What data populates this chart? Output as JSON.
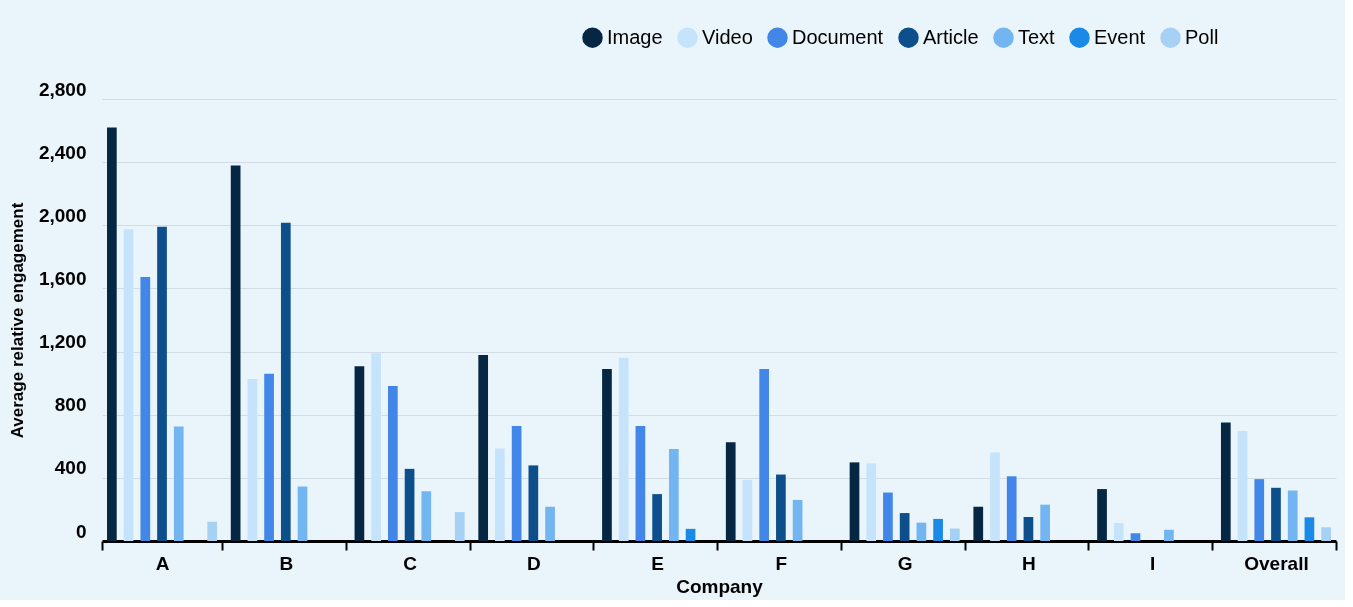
{
  "chart_data": {
    "type": "bar",
    "xlabel": "Company",
    "ylabel": "Average relative engagement",
    "categories": [
      "A",
      "B",
      "C",
      "D",
      "E",
      "F",
      "G",
      "H",
      "I",
      "Overall"
    ],
    "series": [
      {
        "name": "Image",
        "color": "#062743",
        "values": [
          2620,
          2378,
          1107,
          1178,
          1090,
          625,
          498,
          217,
          329,
          751
        ]
      },
      {
        "name": "Video",
        "color": "#c5e4fb",
        "values": [
          1975,
          1026,
          1189,
          586,
          1161,
          388,
          492,
          560,
          114,
          697
        ]
      },
      {
        "name": "Document",
        "color": "#4287e8",
        "values": [
          1672,
          1059,
          982,
          729,
          729,
          1090,
          307,
          410,
          49,
          392
        ]
      },
      {
        "name": "Article",
        "color": "#0d4f8a",
        "values": [
          1990,
          2016,
          457,
          479,
          297,
          421,
          177,
          152,
          null,
          337
        ]
      },
      {
        "name": "Text",
        "color": "#72b5f0",
        "values": [
          725,
          345,
          315,
          217,
          583,
          260,
          116,
          230,
          71,
          320
        ]
      },
      {
        "name": "Event",
        "color": "#1a8ae6",
        "values": [
          null,
          null,
          null,
          null,
          77,
          null,
          140,
          null,
          null,
          150
        ]
      },
      {
        "name": "Poll",
        "color": "#a7d0f5",
        "values": [
          122,
          null,
          183,
          null,
          null,
          null,
          79,
          null,
          null,
          87
        ]
      }
    ],
    "ylim": [
      0,
      2800
    ],
    "yticks": [
      0,
      400,
      800,
      {
        "value": 1200,
        "label": "1,200"
      },
      {
        "value": 1600,
        "label": "1,600"
      },
      {
        "value": 2000,
        "label": "2,000"
      },
      {
        "value": 2400,
        "label": "2,400"
      },
      {
        "value": 2800,
        "label": "2,800"
      }
    ],
    "grid": "y",
    "legend": "top right"
  }
}
